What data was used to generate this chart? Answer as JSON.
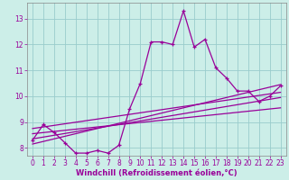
{
  "xlabel": "Windchill (Refroidissement éolien,°C)",
  "bg_color": "#cceee8",
  "line_color": "#990099",
  "grid_color": "#99cccc",
  "xlim": [
    -0.5,
    23.5
  ],
  "ylim": [
    7.7,
    13.6
  ],
  "xticks": [
    0,
    1,
    2,
    3,
    4,
    5,
    6,
    7,
    8,
    9,
    10,
    11,
    12,
    13,
    14,
    15,
    16,
    17,
    18,
    19,
    20,
    21,
    22,
    23
  ],
  "yticks": [
    8,
    9,
    10,
    11,
    12,
    13
  ],
  "hourly_x": [
    0,
    1,
    2,
    3,
    4,
    5,
    6,
    7,
    8,
    9,
    10,
    11,
    12,
    13,
    14,
    15,
    16,
    17,
    18,
    19,
    20,
    21,
    22,
    23
  ],
  "hourly_y": [
    8.3,
    8.9,
    8.6,
    8.2,
    7.8,
    7.8,
    7.9,
    7.8,
    8.1,
    9.5,
    10.5,
    12.1,
    12.1,
    12.0,
    13.3,
    11.9,
    12.2,
    11.1,
    10.7,
    10.2,
    10.2,
    9.8,
    10.0,
    10.4
  ],
  "trend_lines": [
    [
      8.15,
      10.45
    ],
    [
      8.35,
      9.95
    ],
    [
      8.55,
      9.55
    ],
    [
      8.75,
      10.15
    ]
  ]
}
